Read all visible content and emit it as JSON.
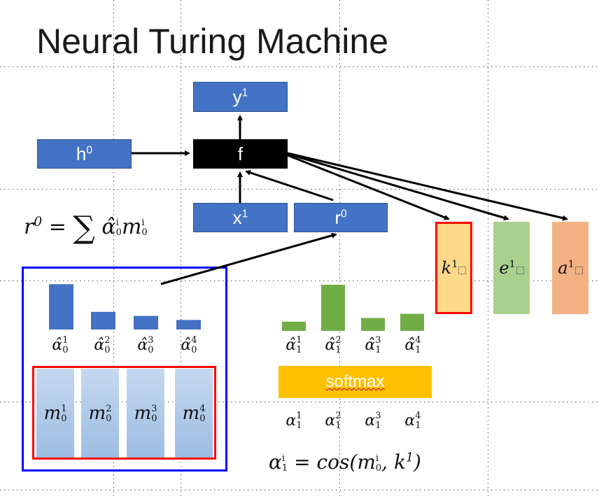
{
  "title": "Neural Turing Machine",
  "nodes": {
    "y": {
      "base": "y",
      "sup": "1"
    },
    "f": "f",
    "h": {
      "base": "h",
      "sup": "0"
    },
    "x": {
      "base": "x",
      "sup": "1"
    },
    "r": {
      "base": "r",
      "sup": "0"
    }
  },
  "read_formula": {
    "lhs": "r",
    "lhs_sup": "0",
    "eq": "=",
    "sum": "∑",
    "alpha": "α̂",
    "alpha_sup": "i",
    "alpha_sub": "0",
    "m": "m",
    "m_sup": "i",
    "m_sub": "0"
  },
  "attention_prev": {
    "labels": [
      {
        "base": "α̂",
        "sup": "1",
        "sub": "0"
      },
      {
        "base": "α̂",
        "sup": "2",
        "sub": "0"
      },
      {
        "base": "α̂",
        "sup": "3",
        "sub": "0"
      },
      {
        "base": "α̂",
        "sup": "4",
        "sub": "0"
      }
    ],
    "values": [
      0.9,
      0.35,
      0.27,
      0.19
    ]
  },
  "memory": [
    {
      "base": "m",
      "sup": "1",
      "sub": "0"
    },
    {
      "base": "m",
      "sup": "2",
      "sub": "0"
    },
    {
      "base": "m",
      "sup": "3",
      "sub": "0"
    },
    {
      "base": "m",
      "sup": "4",
      "sub": "0"
    }
  ],
  "attention_new": {
    "labels": [
      {
        "base": "α̂",
        "sup": "1",
        "sub": "1"
      },
      {
        "base": "α̂",
        "sup": "2",
        "sub": "1"
      },
      {
        "base": "α̂",
        "sup": "3",
        "sub": "1"
      },
      {
        "base": "α̂",
        "sup": "4",
        "sub": "1"
      }
    ],
    "values": [
      0.2,
      1.0,
      0.28,
      0.37
    ]
  },
  "softmax_label": "softmax",
  "alphas": [
    {
      "base": "α",
      "sup": "1",
      "sub": "1"
    },
    {
      "base": "α",
      "sup": "2",
      "sub": "1"
    },
    {
      "base": "α",
      "sup": "3",
      "sub": "1"
    },
    {
      "base": "α",
      "sup": "4",
      "sub": "1"
    }
  ],
  "cos_formula": {
    "lhs": "α",
    "lhs_sup": "i",
    "lhs_sub": "1",
    "eq": "= cos(",
    "m": "m",
    "m_sup": "i",
    "m_sub": "0",
    "comma": ", ",
    "k": "k",
    "k_sup": "1",
    "close": ")"
  },
  "outputs": [
    {
      "base": "k",
      "sup": "1",
      "color": "#ffd98a",
      "border": "#ff0000"
    },
    {
      "base": "e",
      "sup": "1",
      "color": "#a9d18e",
      "border": "#a9d18e"
    },
    {
      "base": "a",
      "sup": "1",
      "color": "#f4b183",
      "border": "#f4b183"
    }
  ],
  "colors": {
    "node": "#4472c4",
    "bar_prev": "#4472c4",
    "bar_new": "#70ad47",
    "memory_frame": "#ff0000",
    "attention_frame": "#0000ff",
    "softmax": "#ffc000"
  }
}
